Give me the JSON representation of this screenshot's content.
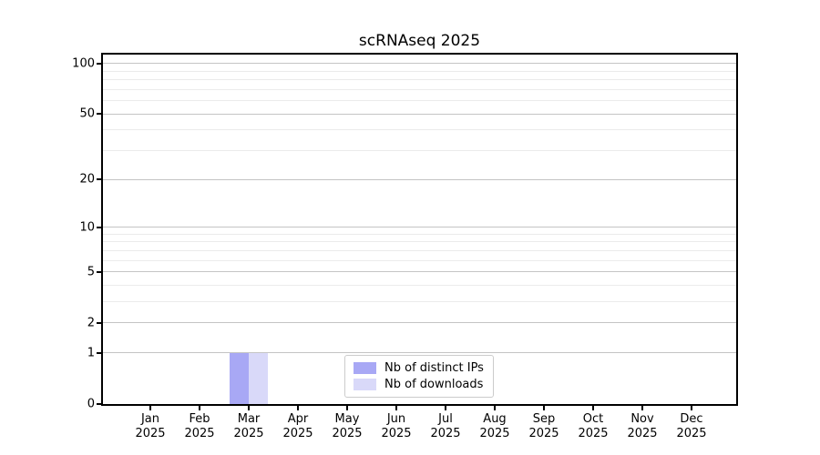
{
  "figure": {
    "background": "#ffffff"
  },
  "chart_data": {
    "type": "bar",
    "title": "scRNAseq 2025",
    "categories": [
      "Jan",
      "Feb",
      "Mar",
      "Apr",
      "May",
      "Jun",
      "Jul",
      "Aug",
      "Sep",
      "Oct",
      "Nov",
      "Dec"
    ],
    "year_label": "2025",
    "series": [
      {
        "name": "Nb of distinct IPs",
        "color": "#a8a8f5",
        "values": [
          0,
          0,
          1,
          0,
          0,
          0,
          0,
          0,
          0,
          0,
          0,
          0
        ]
      },
      {
        "name": "Nb of downloads",
        "color": "#d9d9f9",
        "values": [
          0,
          0,
          1,
          0,
          0,
          0,
          0,
          0,
          0,
          0,
          0,
          0
        ]
      }
    ],
    "xlabel": "",
    "ylabel": "",
    "y_axis": {
      "scale": "log1p",
      "ticks": [
        0,
        1,
        2,
        5,
        10,
        20,
        50,
        100
      ],
      "minor_ticks": [
        3,
        4,
        6,
        7,
        8,
        9,
        30,
        40,
        60,
        70,
        80,
        90
      ],
      "ylim": [
        0,
        113
      ]
    },
    "grid": "horizontal major+minor",
    "legend": {
      "position": "lower center",
      "border_color": "#cccccc"
    },
    "colors": {
      "axis": "#000000",
      "grid_major": "#c4c4c4",
      "grid_minor": "#ebebeb",
      "text": "#000000"
    }
  }
}
